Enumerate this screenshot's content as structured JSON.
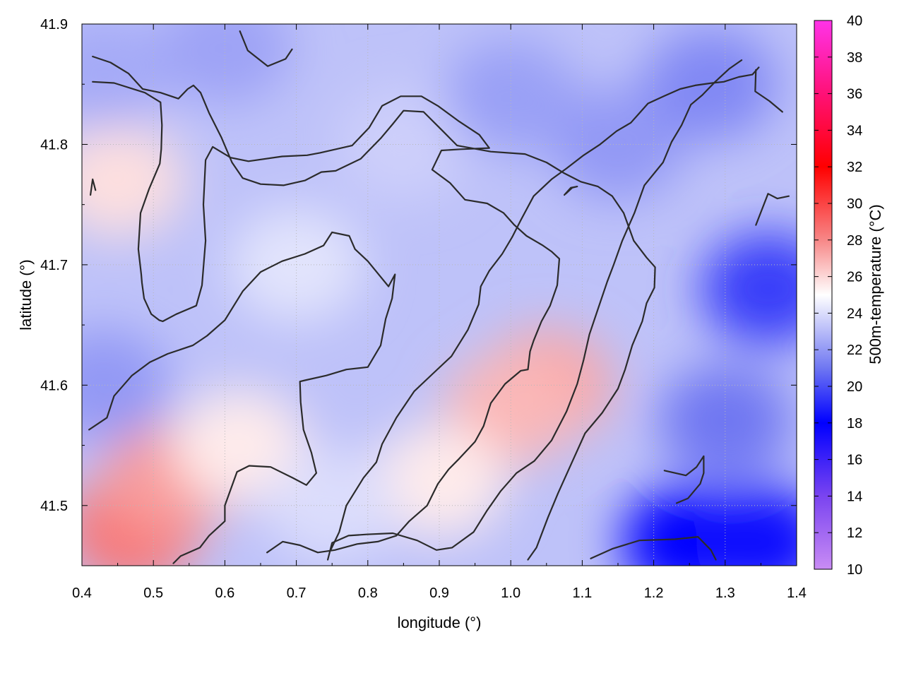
{
  "chart_data": {
    "type": "heatmap",
    "title": "",
    "xlabel": "longitude (°)",
    "ylabel": "latitude (°)",
    "colorbar_label": "500m-temperature (°C)",
    "xlim": [
      0.4,
      1.4
    ],
    "ylim": [
      41.45,
      41.9
    ],
    "clim": [
      10,
      40
    ],
    "x_ticks": [
      "0.4",
      "0.5",
      "0.6",
      "0.7",
      "0.8",
      "0.9",
      "1.0",
      "1.1",
      "1.2",
      "1.3",
      "1.4"
    ],
    "y_ticks": [
      "41.5",
      "41.6",
      "41.7",
      "41.8",
      "41.9"
    ],
    "colorbar_ticks": [
      "10",
      "12",
      "14",
      "16",
      "18",
      "20",
      "22",
      "24",
      "26",
      "28",
      "30",
      "32",
      "34",
      "36",
      "38",
      "40"
    ],
    "grid": true,
    "colormap": [
      {
        "value": 10,
        "color": "#c98cf4"
      },
      {
        "value": 14,
        "color": "#7a44f0"
      },
      {
        "value": 18,
        "color": "#0000ff"
      },
      {
        "value": 21,
        "color": "#6f77f2"
      },
      {
        "value": 25,
        "color": "#ffffff"
      },
      {
        "value": 28,
        "color": "#f78787"
      },
      {
        "value": 32,
        "color": "#ff0000"
      },
      {
        "value": 36,
        "color": "#ff1177"
      },
      {
        "value": 40,
        "color": "#ff33e8"
      }
    ],
    "field_samples": [
      {
        "lon": 0.47,
        "lat": 41.48,
        "t": 28.5
      },
      {
        "lon": 0.52,
        "lat": 41.52,
        "t": 27.5
      },
      {
        "lon": 1.05,
        "lat": 41.6,
        "t": 27.2
      },
      {
        "lon": 1.0,
        "lat": 41.58,
        "t": 26.8
      },
      {
        "lon": 0.45,
        "lat": 41.77,
        "t": 25.8
      },
      {
        "lon": 0.62,
        "lat": 41.55,
        "t": 25.5
      },
      {
        "lon": 0.7,
        "lat": 41.7,
        "t": 24.2
      },
      {
        "lon": 0.43,
        "lat": 41.6,
        "t": 22.0
      },
      {
        "lon": 0.43,
        "lat": 41.86,
        "t": 22.5
      },
      {
        "lon": 0.6,
        "lat": 41.88,
        "t": 22.3
      },
      {
        "lon": 0.85,
        "lat": 41.8,
        "t": 23.6
      },
      {
        "lon": 1.0,
        "lat": 41.84,
        "t": 22.2
      },
      {
        "lon": 1.15,
        "lat": 41.8,
        "t": 22.0
      },
      {
        "lon": 1.28,
        "lat": 41.85,
        "t": 21.5
      },
      {
        "lon": 1.36,
        "lat": 41.68,
        "t": 19.5
      },
      {
        "lon": 1.3,
        "lat": 41.57,
        "t": 21.0
      },
      {
        "lon": 1.25,
        "lat": 41.47,
        "t": 18.0
      },
      {
        "lon": 1.35,
        "lat": 41.47,
        "t": 17.6
      },
      {
        "lon": 0.9,
        "lat": 41.52,
        "t": 25.5
      },
      {
        "lon": 0.75,
        "lat": 41.5,
        "t": 24.0
      }
    ],
    "contours": [
      [
        [
          0.415,
          41.873
        ],
        [
          0.44,
          41.868
        ],
        [
          0.465,
          41.859
        ],
        [
          0.485,
          41.846
        ],
        [
          0.51,
          41.843
        ],
        [
          0.535,
          41.838
        ],
        [
          0.548,
          41.846
        ],
        [
          0.556,
          41.849
        ],
        [
          0.566,
          41.843
        ],
        [
          0.578,
          41.826
        ],
        [
          0.595,
          41.806
        ],
        [
          0.61,
          41.785
        ],
        [
          0.625,
          41.772
        ],
        [
          0.65,
          41.767
        ],
        [
          0.682,
          41.766
        ],
        [
          0.712,
          41.77
        ],
        [
          0.735,
          41.777
        ],
        [
          0.755,
          41.778
        ],
        [
          0.79,
          41.788
        ],
        [
          0.818,
          41.805
        ],
        [
          0.835,
          41.817
        ],
        [
          0.85,
          41.828
        ],
        [
          0.878,
          41.827
        ],
        [
          0.905,
          41.811
        ],
        [
          0.925,
          41.799
        ],
        [
          0.972,
          41.794
        ],
        [
          1.02,
          41.792
        ],
        [
          1.05,
          41.785
        ],
        [
          1.075,
          41.776
        ],
        [
          1.098,
          41.769
        ],
        [
          1.122,
          41.765
        ],
        [
          1.142,
          41.757
        ],
        [
          1.158,
          41.743
        ],
        [
          1.172,
          41.72
        ],
        [
          1.19,
          41.706
        ],
        [
          1.202,
          41.698
        ],
        [
          1.201,
          41.681
        ],
        [
          1.19,
          41.668
        ],
        [
          1.184,
          41.653
        ],
        [
          1.17,
          41.633
        ],
        [
          1.16,
          41.613
        ],
        [
          1.15,
          41.597
        ],
        [
          1.128,
          41.577
        ],
        [
          1.104,
          41.56
        ],
        [
          1.085,
          41.535
        ],
        [
          1.066,
          41.51
        ],
        [
          1.052,
          41.49
        ],
        [
          1.036,
          41.465
        ],
        [
          1.024,
          41.455
        ]
      ],
      [
        [
          0.415,
          41.852
        ],
        [
          0.445,
          41.851
        ],
        [
          0.488,
          41.843
        ],
        [
          0.51,
          41.835
        ],
        [
          0.512,
          41.816
        ],
        [
          0.511,
          41.796
        ],
        [
          0.509,
          41.784
        ],
        [
          0.494,
          41.763
        ],
        [
          0.482,
          41.743
        ],
        [
          0.479,
          41.713
        ],
        [
          0.483,
          41.692
        ],
        [
          0.484,
          41.685
        ],
        [
          0.487,
          41.672
        ],
        [
          0.497,
          41.659
        ],
        [
          0.508,
          41.654
        ],
        [
          0.513,
          41.653
        ],
        [
          0.532,
          41.659
        ],
        [
          0.56,
          41.666
        ],
        [
          0.568,
          41.683
        ],
        [
          0.573,
          41.72
        ],
        [
          0.57,
          41.75
        ],
        [
          0.573,
          41.787
        ],
        [
          0.583,
          41.798
        ],
        [
          0.608,
          41.789
        ],
        [
          0.633,
          41.786
        ],
        [
          0.68,
          41.79
        ],
        [
          0.715,
          41.791
        ],
        [
          0.733,
          41.793
        ],
        [
          0.778,
          41.799
        ],
        [
          0.802,
          41.814
        ],
        [
          0.82,
          41.832
        ],
        [
          0.846,
          41.84
        ],
        [
          0.875,
          41.84
        ],
        [
          0.898,
          41.832
        ],
        [
          0.928,
          41.819
        ],
        [
          0.956,
          41.808
        ],
        [
          0.97,
          41.797
        ],
        [
          0.93,
          41.796
        ],
        [
          0.903,
          41.795
        ],
        [
          0.89,
          41.779
        ],
        [
          0.915,
          41.768
        ],
        [
          0.936,
          41.754
        ],
        [
          0.967,
          41.751
        ],
        [
          0.99,
          41.743
        ],
        [
          1.005,
          41.733
        ],
        [
          1.022,
          41.724
        ],
        [
          1.045,
          41.716
        ],
        [
          1.057,
          41.711
        ],
        [
          1.068,
          41.705
        ],
        [
          1.065,
          41.683
        ],
        [
          1.055,
          41.666
        ],
        [
          1.043,
          41.653
        ],
        [
          1.032,
          41.637
        ],
        [
          1.027,
          41.628
        ],
        [
          1.024,
          41.613
        ],
        [
          1.014,
          41.612
        ],
        [
          0.992,
          41.601
        ],
        [
          0.972,
          41.585
        ],
        [
          0.962,
          41.566
        ],
        [
          0.95,
          41.553
        ],
        [
          0.928,
          41.539
        ],
        [
          0.913,
          41.53
        ],
        [
          0.898,
          41.518
        ],
        [
          0.883,
          41.5
        ],
        [
          0.858,
          41.487
        ],
        [
          0.84,
          41.475
        ],
        [
          0.814,
          41.47
        ],
        [
          0.785,
          41.468
        ],
        [
          0.754,
          41.463
        ],
        [
          0.73,
          41.461
        ],
        [
          0.705,
          41.467
        ],
        [
          0.681,
          41.47
        ],
        [
          0.659,
          41.461
        ]
      ],
      [
        [
          0.41,
          41.563
        ],
        [
          0.435,
          41.573
        ],
        [
          0.445,
          41.591
        ],
        [
          0.47,
          41.608
        ],
        [
          0.495,
          41.619
        ],
        [
          0.52,
          41.626
        ],
        [
          0.555,
          41.633
        ],
        [
          0.575,
          41.641
        ],
        [
          0.6,
          41.654
        ],
        [
          0.625,
          41.678
        ],
        [
          0.65,
          41.694
        ],
        [
          0.68,
          41.703
        ],
        [
          0.712,
          41.709
        ],
        [
          0.738,
          41.716
        ],
        [
          0.75,
          41.727
        ],
        [
          0.774,
          41.724
        ],
        [
          0.782,
          41.713
        ],
        [
          0.8,
          41.703
        ],
        [
          0.829,
          41.682
        ],
        [
          0.838,
          41.692
        ],
        [
          0.834,
          41.672
        ],
        [
          0.825,
          41.655
        ],
        [
          0.818,
          41.633
        ],
        [
          0.8,
          41.615
        ],
        [
          0.77,
          41.613
        ],
        [
          0.742,
          41.608
        ],
        [
          0.712,
          41.604
        ],
        [
          0.705,
          41.603
        ],
        [
          0.706,
          41.586
        ],
        [
          0.71,
          41.563
        ],
        [
          0.721,
          41.544
        ],
        [
          0.728,
          41.527
        ],
        [
          0.714,
          41.517
        ],
        [
          0.695,
          41.523
        ],
        [
          0.664,
          41.532
        ],
        [
          0.634,
          41.533
        ],
        [
          0.617,
          41.528
        ],
        [
          0.6,
          41.5
        ],
        [
          0.6,
          41.487
        ],
        [
          0.578,
          41.475
        ],
        [
          0.565,
          41.465
        ],
        [
          0.538,
          41.458
        ],
        [
          0.528,
          41.452
        ]
      ],
      [
        [
          0.744,
          41.455
        ],
        [
          0.75,
          41.469
        ],
        [
          0.773,
          41.475
        ],
        [
          0.798,
          41.476
        ],
        [
          0.835,
          41.477
        ],
        [
          0.869,
          41.471
        ],
        [
          0.896,
          41.463
        ],
        [
          0.918,
          41.465
        ],
        [
          0.948,
          41.478
        ],
        [
          0.967,
          41.496
        ],
        [
          0.986,
          41.512
        ],
        [
          1.008,
          41.527
        ],
        [
          1.033,
          41.537
        ],
        [
          1.057,
          41.554
        ],
        [
          1.078,
          41.578
        ],
        [
          1.093,
          41.601
        ],
        [
          1.102,
          41.621
        ],
        [
          1.11,
          41.642
        ],
        [
          1.123,
          41.665
        ],
        [
          1.135,
          41.686
        ],
        [
          1.144,
          41.7
        ],
        [
          1.156,
          41.72
        ],
        [
          1.173,
          41.743
        ],
        [
          1.187,
          41.766
        ],
        [
          1.213,
          41.785
        ],
        [
          1.225,
          41.802
        ],
        [
          1.239,
          41.816
        ],
        [
          1.252,
          41.833
        ],
        [
          1.268,
          41.841
        ],
        [
          1.286,
          41.852
        ],
        [
          1.306,
          41.863
        ],
        [
          1.323,
          41.87
        ]
      ],
      [
        [
          0.748,
          41.463
        ],
        [
          0.76,
          41.478
        ],
        [
          0.77,
          41.5
        ],
        [
          0.794,
          41.523
        ],
        [
          0.812,
          41.536
        ],
        [
          0.82,
          41.551
        ],
        [
          0.84,
          41.573
        ],
        [
          0.865,
          41.595
        ],
        [
          0.89,
          41.609
        ],
        [
          0.917,
          41.624
        ],
        [
          0.94,
          41.646
        ],
        [
          0.955,
          41.667
        ],
        [
          0.958,
          41.682
        ],
        [
          0.97,
          41.695
        ],
        [
          0.988,
          41.709
        ],
        [
          1.002,
          41.723
        ],
        [
          1.014,
          41.737
        ],
        [
          1.032,
          41.757
        ],
        [
          1.057,
          41.771
        ],
        [
          1.078,
          41.78
        ],
        [
          1.102,
          41.791
        ],
        [
          1.125,
          41.8
        ],
        [
          1.148,
          41.811
        ],
        [
          1.168,
          41.818
        ],
        [
          1.18,
          41.826
        ],
        [
          1.192,
          41.834
        ],
        [
          1.214,
          41.84
        ],
        [
          1.237,
          41.846
        ],
        [
          1.258,
          41.849
        ],
        [
          1.282,
          41.851
        ],
        [
          1.298,
          41.852
        ],
        [
          1.319,
          41.856
        ],
        [
          1.338,
          41.858
        ],
        [
          1.347,
          41.864
        ]
      ],
      [
        [
          1.075,
          41.758
        ],
        [
          1.084,
          41.764
        ],
        [
          1.093,
          41.765
        ],
        [
          1.086,
          41.764
        ],
        [
          1.077,
          41.759
        ]
      ],
      [
        [
          1.215,
          41.529
        ],
        [
          1.245,
          41.525
        ],
        [
          1.26,
          41.532
        ],
        [
          1.27,
          41.541
        ],
        [
          1.27,
          41.527
        ],
        [
          1.265,
          41.518
        ],
        [
          1.248,
          41.506
        ],
        [
          1.232,
          41.502
        ]
      ],
      [
        [
          1.112,
          41.456
        ],
        [
          1.142,
          41.464
        ],
        [
          1.18,
          41.471
        ],
        [
          1.23,
          41.472
        ],
        [
          1.262,
          41.474
        ],
        [
          1.28,
          41.463
        ],
        [
          1.287,
          41.455
        ]
      ],
      [
        [
          1.343,
          41.862
        ],
        [
          1.342,
          41.844
        ],
        [
          1.362,
          41.836
        ],
        [
          1.38,
          41.827
        ]
      ],
      [
        [
          1.343,
          41.733
        ],
        [
          1.36,
          41.759
        ],
        [
          1.373,
          41.755
        ],
        [
          1.389,
          41.757
        ]
      ],
      [
        [
          0.412,
          41.758
        ],
        [
          0.415,
          41.771
        ],
        [
          0.419,
          41.762
        ]
      ],
      [
        [
          0.621,
          41.894
        ],
        [
          0.632,
          41.878
        ],
        [
          0.66,
          41.865
        ],
        [
          0.685,
          41.871
        ],
        [
          0.694,
          41.879
        ]
      ]
    ]
  }
}
